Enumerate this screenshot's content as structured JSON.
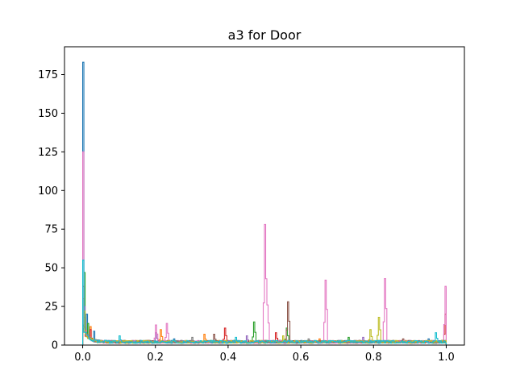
{
  "chart_data": {
    "type": "histogram-step",
    "title": "a3 for Door",
    "xlabel": "",
    "ylabel": "",
    "xlim": [
      -0.05,
      1.05
    ],
    "ylim": [
      0,
      193
    ],
    "x_ticks": [
      0.0,
      0.2,
      0.4,
      0.6,
      0.8,
      1.0
    ],
    "x_tick_labels": [
      "0.0",
      "0.2",
      "0.4",
      "0.6",
      "0.8",
      "1.0"
    ],
    "y_ticks": [
      0,
      25,
      50,
      75,
      100,
      125,
      150,
      175
    ],
    "y_tick_labels": [
      "0",
      "25",
      "50",
      "75",
      "100",
      "125",
      "150",
      "175"
    ],
    "grid": false,
    "legend": "none",
    "colors": [
      "#1f77b4",
      "#ff7f0e",
      "#2ca02c",
      "#d62728",
      "#9467bd",
      "#8c564b",
      "#e377c2",
      "#7f7f7f",
      "#bcbd22",
      "#17becf"
    ],
    "series": [
      {
        "color": "#1f77b4",
        "peaks": [
          {
            "x": 0.002,
            "y": 183
          },
          {
            "x": 0.01,
            "y": 20
          },
          {
            "x": 0.03,
            "y": 9
          }
        ],
        "bumps": [
          {
            "x": 0.25,
            "y": 4
          },
          {
            "x": 0.6,
            "y": 3
          },
          {
            "x": 0.95,
            "y": 4
          }
        ]
      },
      {
        "color": "#ff7f0e",
        "peaks": [
          {
            "x": 0.003,
            "y": 30
          },
          {
            "x": 0.02,
            "y": 12
          }
        ],
        "bumps": [
          {
            "x": 0.215,
            "y": 10
          },
          {
            "x": 0.335,
            "y": 7
          },
          {
            "x": 0.65,
            "y": 4
          }
        ]
      },
      {
        "color": "#2ca02c",
        "peaks": [
          {
            "x": 0.004,
            "y": 47
          },
          {
            "x": 0.015,
            "y": 14
          }
        ],
        "bumps": [
          {
            "x": 0.47,
            "y": 15
          },
          {
            "x": 0.56,
            "y": 11
          },
          {
            "x": 0.73,
            "y": 5
          }
        ]
      },
      {
        "color": "#d62728",
        "peaks": [
          {
            "x": 0.003,
            "y": 38
          },
          {
            "x": 0.02,
            "y": 10
          }
        ],
        "bumps": [
          {
            "x": 0.39,
            "y": 11
          },
          {
            "x": 0.53,
            "y": 8
          },
          {
            "x": 0.997,
            "y": 20
          }
        ]
      },
      {
        "color": "#9467bd",
        "peaks": [
          {
            "x": 0.005,
            "y": 25
          }
        ],
        "bumps": [
          {
            "x": 0.2,
            "y": 8
          },
          {
            "x": 0.45,
            "y": 6
          },
          {
            "x": 0.77,
            "y": 5
          }
        ]
      },
      {
        "color": "#8c564b",
        "peaks": [
          {
            "x": 0.004,
            "y": 21
          }
        ],
        "bumps": [
          {
            "x": 0.565,
            "y": 28
          },
          {
            "x": 0.36,
            "y": 7
          },
          {
            "x": 0.88,
            "y": 4
          }
        ]
      },
      {
        "color": "#e377c2",
        "peaks": [
          {
            "x": 0.002,
            "y": 125
          }
        ],
        "bumps": [
          {
            "x": 0.5,
            "y": 78
          },
          {
            "x": 0.508,
            "y": 26
          },
          {
            "x": 0.667,
            "y": 42
          },
          {
            "x": 0.833,
            "y": 43
          },
          {
            "x": 0.998,
            "y": 38
          },
          {
            "x": 0.2,
            "y": 13
          },
          {
            "x": 0.23,
            "y": 14
          }
        ]
      },
      {
        "color": "#7f7f7f",
        "peaks": [
          {
            "x": 0.006,
            "y": 18
          }
        ],
        "bumps": [
          {
            "x": 0.3,
            "y": 5
          },
          {
            "x": 0.62,
            "y": 4
          }
        ]
      },
      {
        "color": "#bcbd22",
        "peaks": [
          {
            "x": 0.005,
            "y": 22
          }
        ],
        "bumps": [
          {
            "x": 0.815,
            "y": 18
          },
          {
            "x": 0.79,
            "y": 10
          },
          {
            "x": 0.55,
            "y": 6
          }
        ]
      },
      {
        "color": "#17becf",
        "peaks": [
          {
            "x": 0.003,
            "y": 55
          }
        ],
        "bumps": [
          {
            "x": 0.1,
            "y": 6
          },
          {
            "x": 0.42,
            "y": 5
          },
          {
            "x": 0.97,
            "y": 8
          }
        ]
      }
    ]
  }
}
